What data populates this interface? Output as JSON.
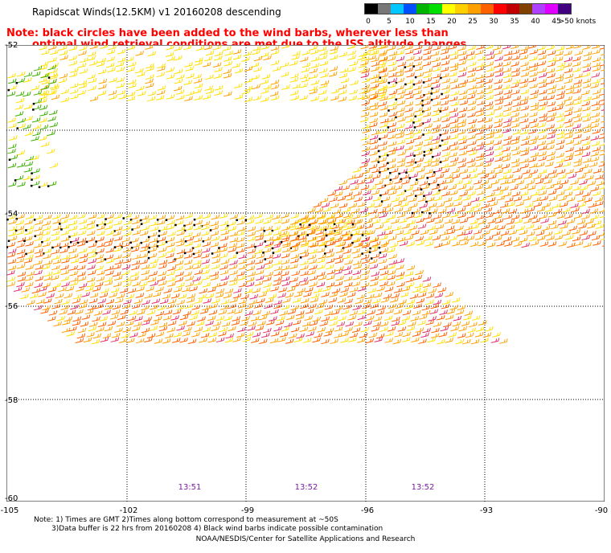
{
  "title": "Rapidscat Winds(12.5KM) v1 20160208 descending",
  "note_line1": "Note: black circles have been added to the wind barbs, wherever less than",
  "note_line2": "optimal wind retrieval conditions are met due to the ISS altitude changes.",
  "legend": {
    "colors": [
      "#000000",
      "#777777",
      "#00c8ff",
      "#0050ff",
      "#00b400",
      "#00e000",
      "#ffff00",
      "#ffd000",
      "#ffa000",
      "#ff6000",
      "#ff0000",
      "#c00000",
      "#804000",
      "#b040ff",
      "#e000ff",
      "#400080"
    ],
    "labels": [
      "0",
      "5",
      "10",
      "15",
      "20",
      "25",
      "30",
      "35",
      "40",
      "45",
      ">50 knots"
    ]
  },
  "lat_labels": [
    "-52",
    "-54",
    "-56",
    "-58",
    "-60"
  ],
  "lon_labels": [
    "-105",
    "-102",
    "-99",
    "-96",
    "-93",
    "-90"
  ],
  "time_labels": [
    "13:51",
    "13:52",
    "13:52"
  ],
  "footnote1": "Note: 1) Times are GMT 2)Times along bottom correspond to measurement at ~50S",
  "footnote2": "3)Data buffer is 22 hrs from 20160208 4) Black wind barbs indicate possible contamination",
  "credit": "NOAA/NESDIS/Center for Satellite Applications and Research",
  "colors": {
    "low": "#3cb000",
    "mid": "#ffe000",
    "high": "#ffa000",
    "strong": "#ff6000",
    "severe": "#e0306a",
    "flag": "#000000"
  }
}
